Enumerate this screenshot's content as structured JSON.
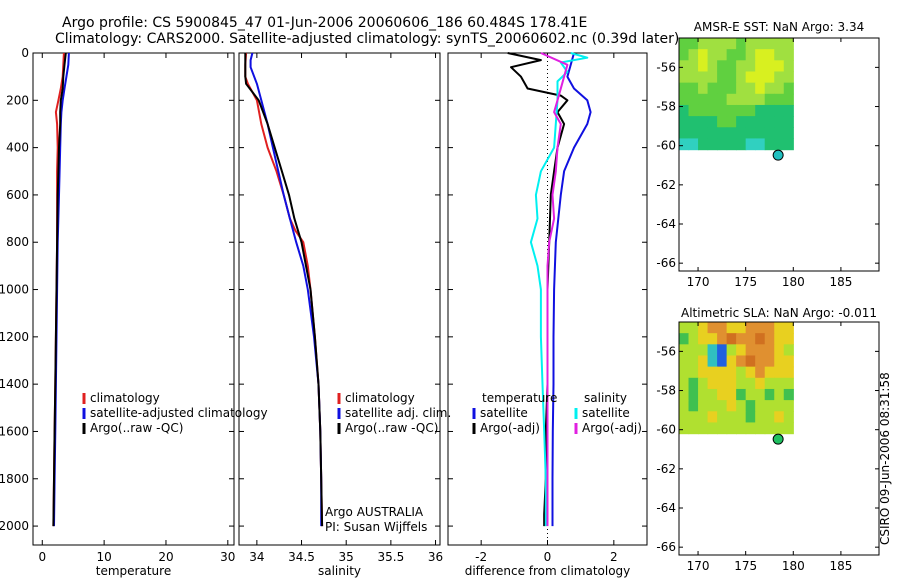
{
  "title": {
    "line1": "Argo profile: CS 5900845_47 01-Jun-2006 20060606_186 60.484S 178.41E",
    "line2": "Climatology: CARS2000. Satellite-adjusted climatology: synTS_20060602.nc (0.39d later)"
  },
  "colors": {
    "climatology": "#e02020",
    "satellite": "#1010e0",
    "argo": "#000000",
    "satellite_sal": "#00f0f0",
    "argo_sal": "#e020e0"
  },
  "chart_data": [
    {
      "type": "line",
      "id": "temperature",
      "xlabel": "temperature",
      "ylabel": "",
      "xlim": [
        -1.5,
        31
      ],
      "ylim": [
        0,
        2080
      ],
      "y_reversed": true,
      "x_ticks": [
        "0",
        "10",
        "20",
        "30"
      ],
      "y_ticks": [
        "0",
        "200",
        "400",
        "600",
        "800",
        "1000",
        "1200",
        "1400",
        "1600",
        "1800",
        "2000"
      ],
      "legend": [
        "climatology",
        "satellite-adjusted climatology",
        "Argo(..raw -QC)"
      ],
      "series": [
        {
          "name": "climatology",
          "color": "#e02020",
          "depth": [
            0,
            50,
            100,
            150,
            200,
            250,
            300,
            400,
            500,
            600,
            800,
            1000,
            1200,
            1400,
            1600,
            1800,
            2000
          ],
          "values": [
            3.5,
            3.4,
            3.3,
            3.0,
            2.6,
            2.2,
            2.4,
            2.5,
            2.4,
            2.4,
            2.4,
            2.3,
            2.2,
            2.1,
            2.0,
            1.9,
            1.8
          ]
        },
        {
          "name": "satellite-adjusted climatology",
          "color": "#1010e0",
          "depth": [
            0,
            50,
            100,
            150,
            200,
            250,
            300,
            400,
            500,
            600,
            800,
            1000,
            1200,
            1400,
            1600,
            1800,
            2000
          ],
          "values": [
            4.3,
            4.2,
            3.9,
            3.6,
            3.3,
            3.1,
            3.0,
            2.9,
            2.8,
            2.7,
            2.5,
            2.4,
            2.3,
            2.2,
            2.1,
            2.0,
            1.9
          ]
        },
        {
          "name": "Argo(..raw -QC)",
          "color": "#000000",
          "depth": [
            0,
            50,
            100,
            150,
            200,
            250,
            300,
            400,
            500,
            600,
            800,
            1000,
            1200,
            1400,
            1600,
            1800,
            2000
          ],
          "values": [
            3.8,
            3.6,
            3.4,
            3.3,
            3.0,
            2.9,
            2.9,
            2.7,
            2.6,
            2.5,
            2.4,
            2.3,
            2.2,
            2.1,
            2.0,
            1.9,
            1.8
          ]
        }
      ]
    },
    {
      "type": "line",
      "id": "salinity",
      "xlabel": "salinity",
      "ylabel": "",
      "xlim": [
        33.8,
        36.05
      ],
      "ylim": [
        0,
        2080
      ],
      "y_reversed": true,
      "x_ticks": [
        "34",
        "34.5",
        "35",
        "35.5",
        "36"
      ],
      "legend": [
        "climatology",
        "satellite adj. clim.",
        "Argo(..raw -QC)"
      ],
      "annotations": [
        "Argo AUSTRALIA",
        "PI: Susan Wijffels"
      ],
      "series": [
        {
          "name": "climatology",
          "color": "#e02020",
          "depth": [
            0,
            50,
            100,
            130,
            200,
            300,
            400,
            500,
            600,
            700,
            750,
            800,
            900,
            1000,
            1200,
            1400,
            1600,
            1800,
            2000
          ],
          "values": [
            33.88,
            33.87,
            33.87,
            33.9,
            34.0,
            34.05,
            34.12,
            34.22,
            34.3,
            34.37,
            34.43,
            34.52,
            34.57,
            34.6,
            34.65,
            34.69,
            34.71,
            34.72,
            34.73
          ]
        },
        {
          "name": "satellite adj. clim.",
          "color": "#1010e0",
          "depth": [
            0,
            30,
            60,
            130,
            200,
            300,
            400,
            500,
            600,
            700,
            800,
            900,
            1000,
            1200,
            1400,
            1600,
            1800,
            2000
          ],
          "values": [
            33.95,
            33.93,
            33.93,
            34.0,
            34.05,
            34.12,
            34.18,
            34.24,
            34.3,
            34.37,
            34.44,
            34.52,
            34.57,
            34.64,
            34.69,
            34.71,
            34.72,
            34.72
          ]
        },
        {
          "name": "Argo(..raw -QC)",
          "color": "#000000",
          "depth": [
            0,
            100,
            130,
            200,
            300,
            400,
            500,
            600,
            700,
            800,
            900,
            1000,
            1200,
            1400,
            1600,
            1800,
            2000
          ],
          "values": [
            33.87,
            33.87,
            33.88,
            34.02,
            34.12,
            34.2,
            34.28,
            34.36,
            34.42,
            34.5,
            34.55,
            34.6,
            34.65,
            34.69,
            34.71,
            34.72,
            34.73
          ]
        }
      ]
    },
    {
      "type": "line",
      "id": "difference",
      "xlabel": "difference from climatology",
      "ylabel": "",
      "xlim": [
        -3,
        3
      ],
      "ylim": [
        0,
        2080
      ],
      "y_reversed": true,
      "x_ticks": [
        "-2",
        "0",
        "2"
      ],
      "legend_groups": [
        {
          "heading": "temperature",
          "items": [
            "satellite",
            "Argo(-adj)"
          ]
        },
        {
          "heading": "salinity",
          "items": [
            "satellite",
            "Argo(-adj)"
          ]
        }
      ],
      "series": [
        {
          "name": "temperature satellite",
          "color": "#1010e0",
          "depth": [
            0,
            100,
            150,
            200,
            250,
            300,
            400,
            500,
            600,
            800,
            1000,
            1200,
            1400,
            1600,
            1800,
            2000
          ],
          "values": [
            0.8,
            0.6,
            0.8,
            1.2,
            1.3,
            1.2,
            0.8,
            0.5,
            0.4,
            0.25,
            0.2,
            0.18,
            0.18,
            0.16,
            0.15,
            0.15
          ]
        },
        {
          "name": "temperature Argo(-adj)",
          "color": "#000000",
          "depth": [
            0,
            30,
            60,
            100,
            150,
            180,
            200,
            250,
            300,
            400,
            500,
            600,
            800,
            1000,
            1200,
            1400,
            1600,
            1800,
            1950,
            2000
          ],
          "values": [
            -1.2,
            -0.2,
            -1.1,
            -0.8,
            -0.6,
            0.4,
            0.6,
            0.3,
            0.5,
            0.3,
            0.2,
            0.1,
            0.05,
            0.0,
            0.0,
            0.0,
            -0.05,
            -0.05,
            -0.1,
            -0.1
          ]
        },
        {
          "name": "salinity satellite",
          "color": "#00f0f0",
          "depth": [
            0,
            20,
            40,
            80,
            120,
            200,
            300,
            400,
            500,
            600,
            700,
            800,
            900,
            1000,
            1200,
            1400,
            1600,
            1800,
            2000
          ],
          "values": [
            0.7,
            1.2,
            0.4,
            0.6,
            0.3,
            0.3,
            0.25,
            0.2,
            -0.2,
            -0.35,
            -0.3,
            -0.5,
            -0.3,
            -0.2,
            -0.2,
            -0.15,
            -0.1,
            -0.05,
            -0.05
          ]
        },
        {
          "name": "salinity Argo(-adj)",
          "color": "#e020e0",
          "depth": [
            0,
            50,
            100,
            200,
            250,
            300,
            400,
            500,
            600,
            700,
            800,
            900,
            1000,
            1200,
            1400,
            1600,
            1800,
            2000
          ],
          "values": [
            -0.2,
            0.6,
            0.5,
            0.3,
            0.2,
            0.4,
            0.3,
            0.25,
            0.15,
            0.2,
            0.05,
            0.0,
            0.0,
            0.0,
            0.0,
            0.0,
            0.0,
            0.0
          ]
        }
      ]
    },
    {
      "type": "heatmap",
      "id": "sst_map",
      "title": "AMSR-E SST: NaN Argo: 3.34",
      "xlim": [
        168,
        189
      ],
      "ylim": [
        -66.4,
        -54.5
      ],
      "x_ticks": [
        "170",
        "175",
        "180",
        "185"
      ],
      "y_ticks": [
        "-56",
        "-58",
        "-60",
        "-62",
        "-64",
        "-66"
      ],
      "marker": {
        "lon": 178.41,
        "lat": -60.484
      },
      "data_extent": {
        "lon": [
          168,
          180
        ],
        "lat": [
          -60.2,
          -54.5
        ]
      },
      "colormap": [
        "#30d0c0",
        "#20c070",
        "#60d040",
        "#a0e040",
        "#d8f020"
      ],
      "rows_north_to_south": [
        [
          2,
          2,
          3,
          3,
          3,
          3,
          2,
          3,
          3,
          3,
          3,
          3
        ],
        [
          2,
          3,
          4,
          3,
          3,
          2,
          2,
          3,
          4,
          4,
          3,
          3
        ],
        [
          3,
          3,
          4,
          3,
          2,
          2,
          3,
          3,
          4,
          4,
          4,
          3
        ],
        [
          3,
          3,
          3,
          3,
          2,
          2,
          3,
          4,
          4,
          4,
          3,
          3
        ],
        [
          2,
          2,
          3,
          2,
          2,
          2,
          3,
          3,
          4,
          3,
          3,
          2
        ],
        [
          2,
          2,
          2,
          2,
          2,
          3,
          3,
          3,
          3,
          2,
          2,
          2
        ],
        [
          1,
          2,
          2,
          2,
          2,
          2,
          2,
          2,
          1,
          1,
          1,
          1
        ],
        [
          1,
          1,
          1,
          1,
          2,
          2,
          1,
          1,
          1,
          1,
          1,
          1
        ],
        [
          1,
          1,
          1,
          1,
          1,
          1,
          1,
          1,
          1,
          1,
          1,
          1
        ],
        [
          0,
          0,
          1,
          1,
          1,
          1,
          1,
          0,
          0,
          1,
          1,
          1
        ]
      ]
    },
    {
      "type": "heatmap",
      "id": "sla_map",
      "title": "Altimetric SLA: NaN Argo: -0.011",
      "xlim": [
        168,
        189
      ],
      "ylim": [
        -66.4,
        -54.5
      ],
      "x_ticks": [
        "170",
        "175",
        "180",
        "185"
      ],
      "y_ticks": [
        "-56",
        "-58",
        "-60",
        "-62",
        "-64",
        "-66"
      ],
      "marker": {
        "lon": 178.41,
        "lat": -60.484
      },
      "data_extent": {
        "lon": [
          168,
          180
        ],
        "lat": [
          -60.2,
          -54.5
        ]
      },
      "colormap": [
        "#2060e0",
        "#30c0c0",
        "#40c050",
        "#b0e030",
        "#e8d020",
        "#e09030",
        "#d07020"
      ],
      "rows_north_to_south": [
        [
          3,
          3,
          4,
          5,
          5,
          4,
          4,
          5,
          5,
          5,
          4,
          4
        ],
        [
          2,
          3,
          4,
          4,
          5,
          6,
          5,
          5,
          6,
          5,
          4,
          4
        ],
        [
          3,
          3,
          3,
          1,
          0,
          3,
          4,
          5,
          5,
          5,
          4,
          3
        ],
        [
          3,
          3,
          4,
          1,
          0,
          4,
          5,
          6,
          5,
          5,
          4,
          4
        ],
        [
          3,
          3,
          4,
          4,
          4,
          4,
          3,
          4,
          5,
          4,
          4,
          4
        ],
        [
          3,
          2,
          3,
          4,
          4,
          4,
          3,
          3,
          4,
          3,
          3,
          3
        ],
        [
          3,
          2,
          3,
          3,
          4,
          4,
          2,
          3,
          3,
          2,
          3,
          2
        ],
        [
          3,
          2,
          3,
          3,
          3,
          4,
          3,
          2,
          3,
          3,
          3,
          3
        ],
        [
          3,
          3,
          3,
          4,
          3,
          3,
          3,
          2,
          3,
          3,
          4,
          3
        ],
        [
          3,
          3,
          3,
          3,
          3,
          3,
          3,
          3,
          3,
          3,
          3,
          3
        ]
      ]
    }
  ],
  "footer": "CSIRO 09-Jun-2006 08:31:58"
}
